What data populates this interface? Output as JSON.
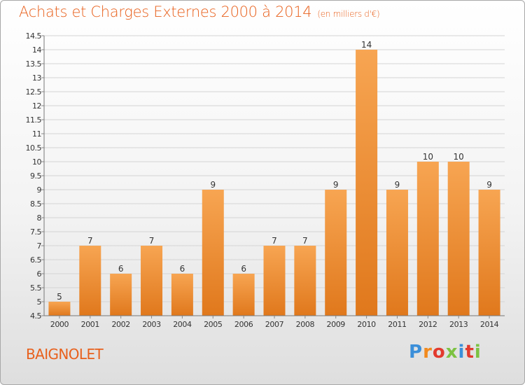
{
  "header": {
    "title": "Achats et Charges Externes 2000 à 2014",
    "unit": "(en milliers d'€)"
  },
  "footer": {
    "place": "BAIGNOLET",
    "logo_text": "Proxiti"
  },
  "colors": {
    "title": "#e8601c",
    "bar_light": "#f7a552",
    "bar_dark": "#e0781c",
    "grid": "#d4d4d4",
    "axis_text": "#333333",
    "logo": [
      "#3b8fd9",
      "#f28a1e",
      "#e23a2e",
      "#7cc242",
      "#3b8fd9",
      "#e23a2e",
      "#7cc242"
    ]
  },
  "chart_data": {
    "type": "bar",
    "title": "Achats et Charges Externes 2000 à 2014",
    "subtitle": "(en milliers d'€)",
    "categories": [
      "2000",
      "2001",
      "2002",
      "2003",
      "2004",
      "2005",
      "2006",
      "2007",
      "2008",
      "2009",
      "2010",
      "2011",
      "2012",
      "2013",
      "2014"
    ],
    "values": [
      5,
      7,
      6,
      7,
      6,
      9,
      6,
      7,
      7,
      9,
      14,
      9,
      10,
      10,
      9
    ],
    "data_labels": [
      "5",
      "7",
      "6",
      "7",
      "6",
      "9",
      "6",
      "7",
      "7",
      "9",
      "14",
      "9",
      "10",
      "10",
      "9"
    ],
    "ylim": [
      4.5,
      14.5
    ],
    "yticks": [
      "4.5",
      "5",
      "5.5",
      "6",
      "6.5",
      "7",
      "7.5",
      "8",
      "8.5",
      "9",
      "9.5",
      "10",
      "10.5",
      "11",
      "11.5",
      "12",
      "12.5",
      "13",
      "13.5",
      "14",
      "14.5"
    ],
    "grid": true,
    "xlabel": "",
    "ylabel": ""
  }
}
